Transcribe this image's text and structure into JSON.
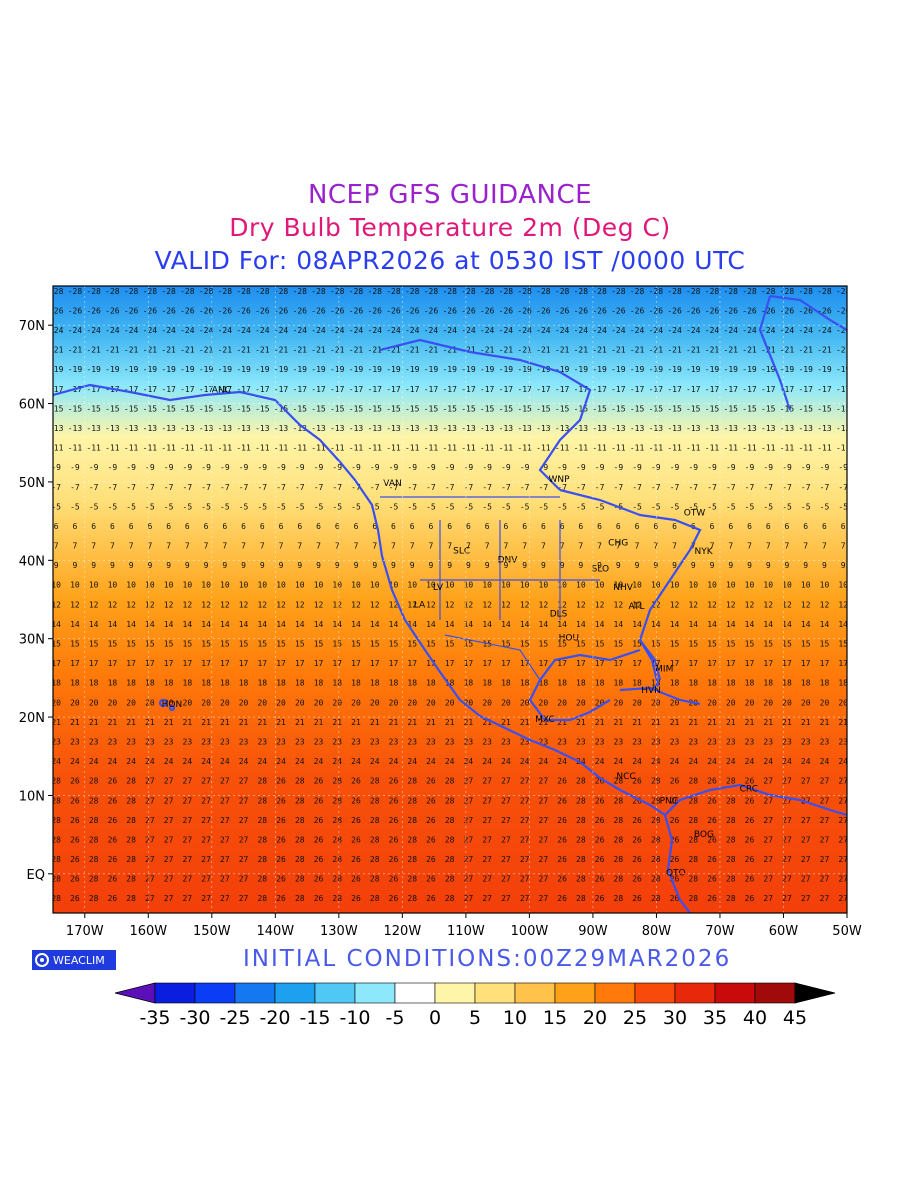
{
  "titles": {
    "line1": "NCEP GFS GUIDANCE",
    "line2": "Dry Bulb Temperature 2m (Deg C)",
    "line3": "VALID For: 08APR2026 at 0530 IST /0000 UTC"
  },
  "initial_conditions": "INITIAL CONDITIONS:00Z29MAR2026",
  "badge_label": "WEACLIM",
  "colors": {
    "title1": "#9a22cc",
    "title2": "#e0187a",
    "title3": "#2a3ef0",
    "coast": "#3a4ff0"
  },
  "map": {
    "lon_labels": [
      "170W",
      "160W",
      "150W",
      "140W",
      "130W",
      "120W",
      "110W",
      "100W",
      "90W",
      "80W",
      "70W",
      "60W",
      "50W"
    ],
    "lat_labels": [
      "70N",
      "60N",
      "50N",
      "40N",
      "30N",
      "20N",
      "10N",
      "EQ"
    ],
    "stations": [
      {
        "code": "ANC",
        "lon": -150,
        "lat": 61.4
      },
      {
        "code": "VAN",
        "lon": -123,
        "lat": 49.5
      },
      {
        "code": "WNP",
        "lon": -97,
        "lat": 50.0
      },
      {
        "code": "OTW",
        "lon": -75.7,
        "lat": 45.7
      },
      {
        "code": "NYK",
        "lon": -74,
        "lat": 40.8
      },
      {
        "code": "SLC",
        "lon": -112,
        "lat": 40.9
      },
      {
        "code": "DNV",
        "lon": -105,
        "lat": 39.7
      },
      {
        "code": "CHG",
        "lon": -87.6,
        "lat": 41.9
      },
      {
        "code": "SLO",
        "lon": -90.2,
        "lat": 38.6
      },
      {
        "code": "LA",
        "lon": -118.2,
        "lat": 34.0
      },
      {
        "code": "LV",
        "lon": -115.2,
        "lat": 36.2
      },
      {
        "code": "NHV",
        "lon": -86.8,
        "lat": 36.2
      },
      {
        "code": "ATL",
        "lon": -84.4,
        "lat": 33.8
      },
      {
        "code": "DLS",
        "lon": -96.8,
        "lat": 32.8
      },
      {
        "code": "HOU",
        "lon": -95.4,
        "lat": 29.8
      },
      {
        "code": "MIM",
        "lon": -80.2,
        "lat": 25.8
      },
      {
        "code": "HVN",
        "lon": -82.4,
        "lat": 23.1
      },
      {
        "code": "MXC",
        "lon": -99.1,
        "lat": 19.4
      },
      {
        "code": "HON",
        "lon": -157.9,
        "lat": 21.3
      },
      {
        "code": "CRC",
        "lon": -66.9,
        "lat": 10.5
      },
      {
        "code": "PNC",
        "lon": -79.5,
        "lat": 9.0
      },
      {
        "code": "NCC",
        "lon": -86.3,
        "lat": 12.1
      },
      {
        "code": "BOG",
        "lon": -74.1,
        "lat": 4.7
      },
      {
        "code": "QTO",
        "lon": -78.5,
        "lat": -0.2
      }
    ]
  },
  "colorbar": {
    "labels": [
      "-35",
      "-30",
      "-25",
      "-20",
      "-15",
      "-10",
      "-5",
      "0",
      "5",
      "10",
      "15",
      "20",
      "25",
      "30",
      "35",
      "40",
      "45"
    ],
    "colors": [
      "#5a0fb8",
      "#0a1ee0",
      "#0a3df5",
      "#1478f0",
      "#1ea0f0",
      "#50c8f5",
      "#8ce8fa",
      "#ffffff",
      "#fff5a8",
      "#ffe07a",
      "#ffc24a",
      "#ffa21a",
      "#ff7a0a",
      "#f84a0a",
      "#e8280a",
      "#c80a0a",
      "#a00a0a",
      "#000000"
    ]
  }
}
